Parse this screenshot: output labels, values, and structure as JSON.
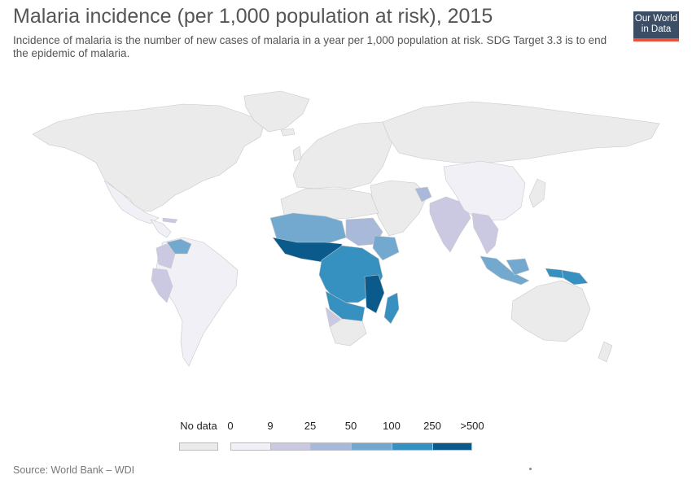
{
  "header": {
    "title": "Malaria incidence (per 1,000 population at risk), 2015",
    "subtitle": "Incidence of malaria is the number of new cases of malaria in a year per 1,000 population at risk. SDG Target 3.3 is to end the epidemic of malaria."
  },
  "logo": {
    "line1": "Our World",
    "line2": "in Data"
  },
  "legend": {
    "no_data_label": "No data",
    "no_data_color": "#ebebeb",
    "bins": [
      "0",
      "9",
      "25",
      "50",
      "100",
      "250",
      ">500"
    ],
    "colors": [
      "#f2f0f7",
      "#cbc9e2",
      "#a9b9d9",
      "#74a9cf",
      "#3690c0",
      "#0a5a8c"
    ]
  },
  "source": "Source: World Bank – WDI"
}
